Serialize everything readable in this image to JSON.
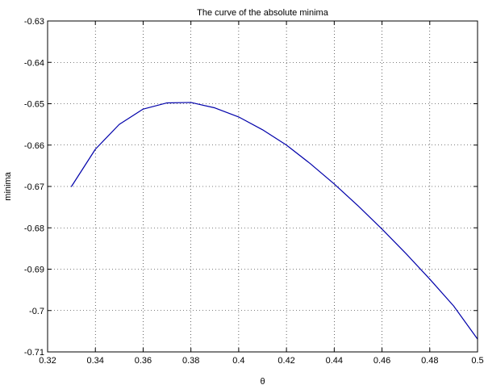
{
  "chart_data": {
    "type": "line",
    "title": "The curve of the absolute minima",
    "xlabel": "θ",
    "ylabel": "minima",
    "xlim": [
      0.32,
      0.5
    ],
    "ylim": [
      -0.71,
      -0.63
    ],
    "grid": true,
    "x_ticks": [
      0.32,
      0.34,
      0.36,
      0.38,
      0.4,
      0.42,
      0.44,
      0.46,
      0.48,
      0.5
    ],
    "x_tick_labels": [
      "0.32",
      "0.34",
      "0.36",
      "0.38",
      "0.4",
      "0.42",
      "0.44",
      "0.46",
      "0.48",
      "0.5"
    ],
    "y_ticks": [
      -0.63,
      -0.64,
      -0.65,
      -0.66,
      -0.67,
      -0.68,
      -0.69,
      -0.7,
      -0.71
    ],
    "y_tick_labels": [
      "-0.63",
      "-0.64",
      "-0.65",
      "-0.66",
      "-0.67",
      "-0.68",
      "-0.69",
      "-0.7",
      "-0.71"
    ],
    "series": [
      {
        "color": "#0000aa",
        "x": [
          0.33,
          0.34,
          0.35,
          0.36,
          0.37,
          0.38,
          0.39,
          0.4,
          0.41,
          0.42,
          0.43,
          0.44,
          0.45,
          0.46,
          0.47,
          0.48,
          0.49,
          0.5
        ],
        "y": [
          -0.67,
          -0.661,
          -0.655,
          -0.6513,
          -0.6498,
          -0.6497,
          -0.651,
          -0.6532,
          -0.6563,
          -0.66,
          -0.6645,
          -0.6694,
          -0.6747,
          -0.6803,
          -0.6862,
          -0.6924,
          -0.6989,
          -0.7069
        ]
      }
    ]
  }
}
